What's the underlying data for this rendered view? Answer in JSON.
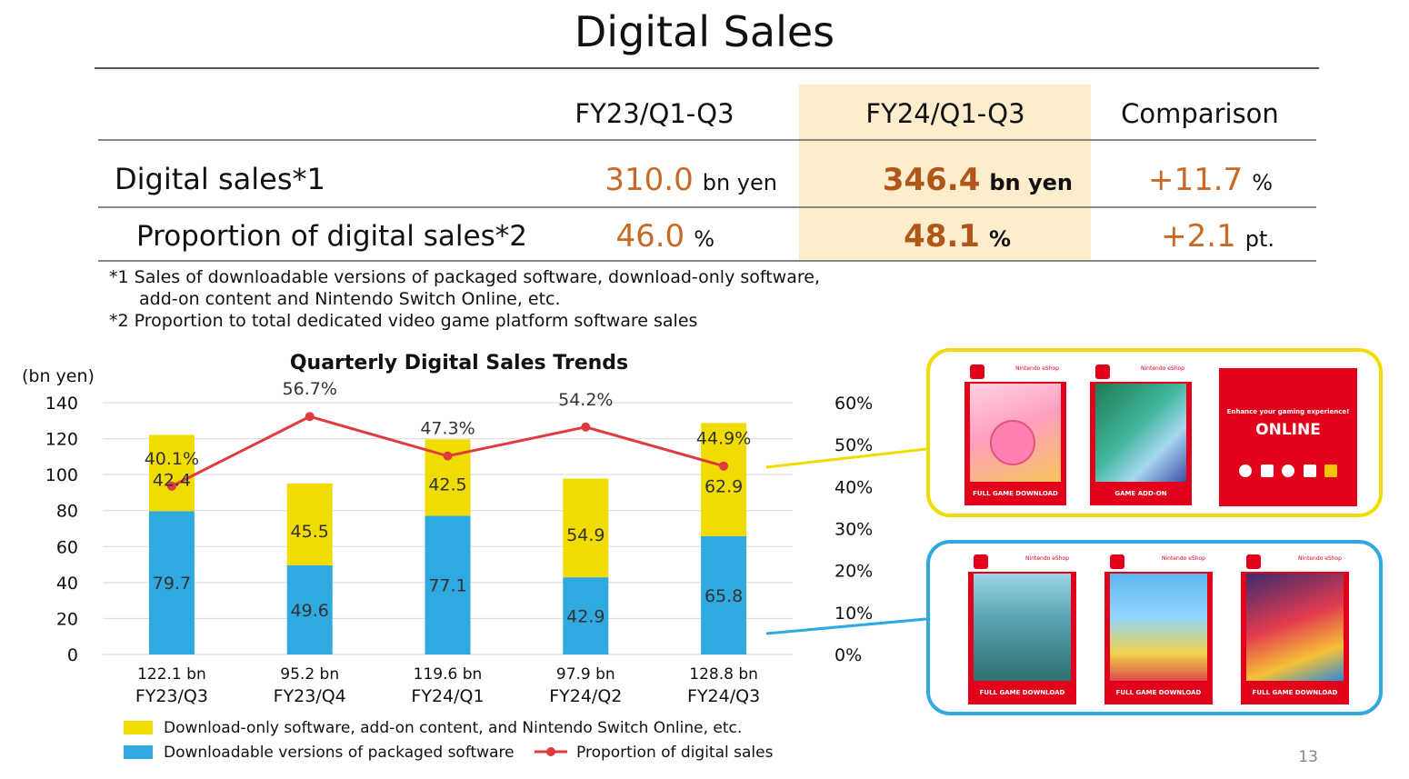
{
  "title": "Digital Sales",
  "table": {
    "headers": [
      "FY23/Q1-Q3",
      "FY24/Q1-Q3",
      "Comparison"
    ],
    "rows": [
      {
        "label": "Digital sales*1",
        "fy23": "310.0",
        "fy23_unit": "bn yen",
        "fy24": "346.4",
        "fy24_unit": "bn yen",
        "comp": "+11.7",
        "comp_unit": "%"
      },
      {
        "label": "Proportion of digital sales*2",
        "fy23": "46.0",
        "fy23_unit": "%",
        "fy24": "48.1",
        "fy24_unit": "%",
        "comp": "+2.1",
        "comp_unit": "pt."
      }
    ]
  },
  "notes": [
    "*1 Sales of downloadable versions of packaged software, download-only software,",
    "add-on content and Nintendo Switch Online, etc.",
    "*2 Proportion to total dedicated video game platform software sales"
  ],
  "chart_data": {
    "type": "bar",
    "title": "Quarterly Digital Sales Trends",
    "ylabel": "(bn yen)",
    "ylim": [
      0,
      140
    ],
    "yticks": [
      0,
      20,
      40,
      60,
      80,
      100,
      120,
      140
    ],
    "y2lim": [
      0,
      60
    ],
    "y2ticks": [
      "0%",
      "10%",
      "20%",
      "30%",
      "40%",
      "50%",
      "60%"
    ],
    "categories": [
      "FY23/Q3",
      "FY23/Q4",
      "FY24/Q1",
      "FY24/Q2",
      "FY24/Q3"
    ],
    "totals": [
      "122.1 bn",
      "95.2 bn",
      "119.6 bn",
      "97.9 bn",
      "128.8 bn"
    ],
    "series": [
      {
        "name": "Downloadable versions of packaged software",
        "type": "bar",
        "color": "#2fa9e0",
        "values": [
          79.7,
          49.6,
          77.1,
          42.9,
          65.8
        ]
      },
      {
        "name": "Download-only software, add-on content, and Nintendo Switch Online, etc.",
        "type": "bar",
        "color": "#f0dc00",
        "values": [
          42.4,
          45.5,
          42.5,
          54.9,
          62.9
        ]
      },
      {
        "name": "Proportion of digital sales",
        "type": "line",
        "color": "#e03a3e",
        "values": [
          40.1,
          56.7,
          47.3,
          54.2,
          44.9
        ],
        "labels": [
          "40.1%",
          "56.7%",
          "47.3%",
          "54.2%",
          "44.9%"
        ]
      }
    ],
    "grid": true,
    "legend_position": "bottom"
  },
  "images": {
    "download_only_panel_color": "#f0dc00",
    "packaged_panel_color": "#2fa9e0",
    "nso_card_text": "Enhance your gaming experience!",
    "nso_logo_text": "ONLINE"
  },
  "page_number": "13"
}
